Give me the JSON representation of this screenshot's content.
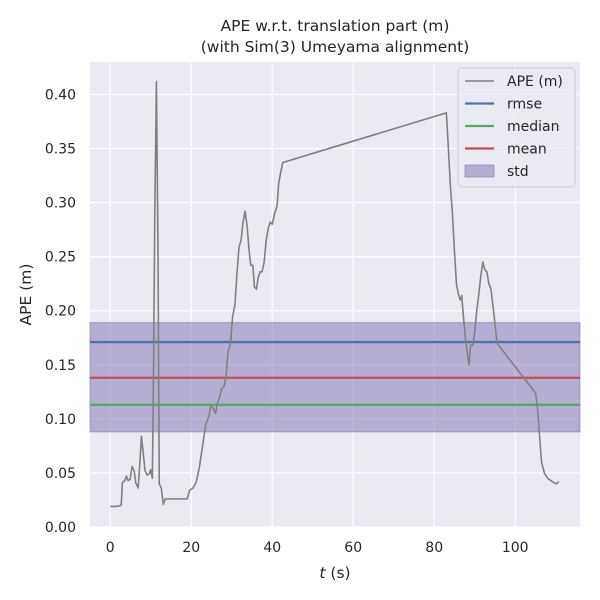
{
  "chart_data": {
    "type": "line",
    "title_lines": [
      "APE w.r.t. translation part (m)",
      "(with Sim(3) Umeyama alignment)"
    ],
    "xlabel_var": "t",
    "xlabel_unit": " (s)",
    "ylabel": "APE (m)",
    "xlim": [
      -5,
      116
    ],
    "ylim": [
      0,
      0.43
    ],
    "xticks": [
      0,
      20,
      40,
      60,
      80,
      100
    ],
    "xtick_labels": [
      "0",
      "20",
      "40",
      "60",
      "80",
      "100"
    ],
    "yticks": [
      0.0,
      0.05,
      0.1,
      0.15,
      0.2,
      0.25,
      0.3,
      0.35,
      0.4
    ],
    "ytick_labels": [
      "0.00",
      "0.05",
      "0.10",
      "0.15",
      "0.20",
      "0.25",
      "0.30",
      "0.35",
      "0.40"
    ],
    "grid": true,
    "legend_position": "top-right",
    "colors": {
      "background": "#eaeaf2",
      "grid": "#ffffff",
      "ape": "#808080",
      "rmse": "#4c72b0",
      "median": "#55a868",
      "mean": "#c44e52",
      "std": "#8172b2"
    },
    "legend": [
      "APE (m)",
      "rmse",
      "median",
      "mean",
      "std"
    ],
    "stats": {
      "rmse": 0.171,
      "median": 0.113,
      "mean": 0.138,
      "std_band": [
        0.088,
        0.189
      ]
    },
    "series": [
      {
        "name": "APE (m)",
        "points": [
          [
            0,
            0.019
          ],
          [
            1.5,
            0.019
          ],
          [
            2.7,
            0.02
          ],
          [
            3.0,
            0.041
          ],
          [
            3.6,
            0.043
          ],
          [
            4.0,
            0.047
          ],
          [
            4.4,
            0.043
          ],
          [
            4.9,
            0.044
          ],
          [
            5.4,
            0.056
          ],
          [
            5.9,
            0.052
          ],
          [
            6.3,
            0.041
          ],
          [
            6.9,
            0.036
          ],
          [
            7.4,
            0.064
          ],
          [
            7.7,
            0.084
          ],
          [
            8.1,
            0.07
          ],
          [
            8.6,
            0.052
          ],
          [
            9.1,
            0.048
          ],
          [
            9.6,
            0.049
          ],
          [
            10.0,
            0.053
          ],
          [
            10.4,
            0.045
          ],
          [
            10.7,
            0.15
          ],
          [
            11.0,
            0.29
          ],
          [
            11.4,
            0.412
          ],
          [
            11.8,
            0.25
          ],
          [
            12.1,
            0.04
          ],
          [
            12.6,
            0.036
          ],
          [
            13.1,
            0.021
          ],
          [
            13.6,
            0.026
          ],
          [
            15.0,
            0.026
          ],
          [
            17.0,
            0.026
          ],
          [
            19.0,
            0.026
          ],
          [
            19.6,
            0.034
          ],
          [
            20.4,
            0.036
          ],
          [
            21.2,
            0.041
          ],
          [
            22.0,
            0.055
          ],
          [
            22.8,
            0.075
          ],
          [
            23.6,
            0.095
          ],
          [
            24.4,
            0.103
          ],
          [
            24.8,
            0.112
          ],
          [
            25.4,
            0.11
          ],
          [
            26.0,
            0.105
          ],
          [
            26.4,
            0.114
          ],
          [
            27.0,
            0.12
          ],
          [
            27.5,
            0.128
          ],
          [
            28.1,
            0.13
          ],
          [
            28.6,
            0.14
          ],
          [
            29.1,
            0.162
          ],
          [
            29.7,
            0.17
          ],
          [
            30.2,
            0.194
          ],
          [
            30.8,
            0.206
          ],
          [
            31.3,
            0.235
          ],
          [
            31.8,
            0.259
          ],
          [
            32.3,
            0.265
          ],
          [
            32.8,
            0.282
          ],
          [
            33.3,
            0.292
          ],
          [
            33.8,
            0.278
          ],
          [
            34.3,
            0.255
          ],
          [
            34.7,
            0.242
          ],
          [
            35.2,
            0.242
          ],
          [
            35.6,
            0.222
          ],
          [
            36.1,
            0.22
          ],
          [
            36.5,
            0.23
          ],
          [
            37.0,
            0.236
          ],
          [
            37.5,
            0.236
          ],
          [
            38.0,
            0.245
          ],
          [
            38.5,
            0.265
          ],
          [
            39.0,
            0.276
          ],
          [
            39.5,
            0.282
          ],
          [
            40.0,
            0.28
          ],
          [
            40.6,
            0.29
          ],
          [
            41.2,
            0.297
          ],
          [
            41.6,
            0.318
          ],
          [
            42.1,
            0.328
          ],
          [
            42.6,
            0.337
          ],
          [
            83.0,
            0.383
          ],
          [
            83.5,
            0.35
          ],
          [
            84.0,
            0.315
          ],
          [
            84.5,
            0.29
          ],
          [
            85.0,
            0.255
          ],
          [
            85.5,
            0.224
          ],
          [
            86.0,
            0.215
          ],
          [
            86.4,
            0.21
          ],
          [
            86.8,
            0.214
          ],
          [
            87.2,
            0.195
          ],
          [
            87.7,
            0.175
          ],
          [
            88.2,
            0.16
          ],
          [
            88.6,
            0.15
          ],
          [
            89.0,
            0.168
          ],
          [
            89.5,
            0.168
          ],
          [
            90.0,
            0.18
          ],
          [
            90.5,
            0.2
          ],
          [
            91.0,
            0.215
          ],
          [
            91.5,
            0.232
          ],
          [
            92.0,
            0.245
          ],
          [
            92.5,
            0.238
          ],
          [
            93.0,
            0.236
          ],
          [
            93.5,
            0.225
          ],
          [
            94.0,
            0.22
          ],
          [
            94.5,
            0.205
          ],
          [
            95.0,
            0.188
          ],
          [
            95.5,
            0.17
          ],
          [
            105.0,
            0.124
          ],
          [
            105.5,
            0.11
          ],
          [
            106.0,
            0.085
          ],
          [
            106.5,
            0.06
          ],
          [
            107.2,
            0.05
          ],
          [
            108.0,
            0.045
          ],
          [
            108.8,
            0.043
          ],
          [
            109.5,
            0.041
          ],
          [
            110.2,
            0.04
          ],
          [
            110.8,
            0.042
          ]
        ]
      }
    ]
  }
}
